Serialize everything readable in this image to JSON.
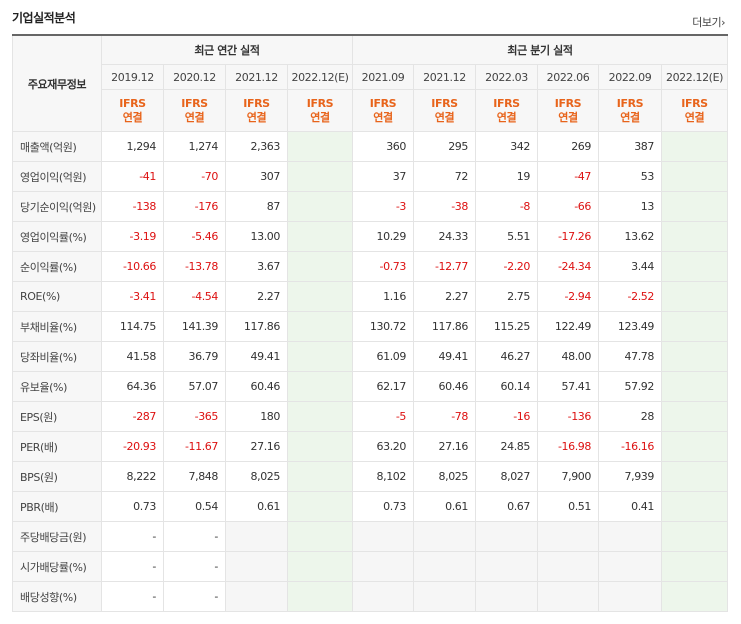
{
  "title": "기업실적분석",
  "more_label": "더보기",
  "more_icon": "chevron-right-icon",
  "header": {
    "side_label": "주요재무정보",
    "annual_label": "최근 연간 실적",
    "quarter_label": "최근 분기 실적",
    "periods": [
      "2019.12",
      "2020.12",
      "2021.12",
      "2022.12(E)",
      "2021.09",
      "2021.12",
      "2022.03",
      "2022.06",
      "2022.09",
      "2022.12(E)"
    ],
    "ifrs_top": "IFRS",
    "ifrs_bottom": "연결"
  },
  "rows": [
    {
      "label": "매출액(억원)",
      "values": [
        "1,294",
        "1,274",
        "2,363",
        "",
        "360",
        "295",
        "342",
        "269",
        "387",
        ""
      ]
    },
    {
      "label": "영업이익(억원)",
      "values": [
        "-41",
        "-70",
        "307",
        "",
        "37",
        "72",
        "19",
        "-47",
        "53",
        ""
      ]
    },
    {
      "label": "당기순이익(억원)",
      "values": [
        "-138",
        "-176",
        "87",
        "",
        "-3",
        "-38",
        "-8",
        "-66",
        "13",
        ""
      ]
    },
    {
      "label": "영업이익률(%)",
      "values": [
        "-3.19",
        "-5.46",
        "13.00",
        "",
        "10.29",
        "24.33",
        "5.51",
        "-17.26",
        "13.62",
        ""
      ]
    },
    {
      "label": "순이익률(%)",
      "values": [
        "-10.66",
        "-13.78",
        "3.67",
        "",
        "-0.73",
        "-12.77",
        "-2.20",
        "-24.34",
        "3.44",
        ""
      ]
    },
    {
      "label": "ROE(%)",
      "values": [
        "-3.41",
        "-4.54",
        "2.27",
        "",
        "1.16",
        "2.27",
        "2.75",
        "-2.94",
        "-2.52",
        ""
      ]
    },
    {
      "label": "부채비율(%)",
      "values": [
        "114.75",
        "141.39",
        "117.86",
        "",
        "130.72",
        "117.86",
        "115.25",
        "122.49",
        "123.49",
        ""
      ]
    },
    {
      "label": "당좌비율(%)",
      "values": [
        "41.58",
        "36.79",
        "49.41",
        "",
        "61.09",
        "49.41",
        "46.27",
        "48.00",
        "47.78",
        ""
      ]
    },
    {
      "label": "유보율(%)",
      "values": [
        "64.36",
        "57.07",
        "60.46",
        "",
        "62.17",
        "60.46",
        "60.14",
        "57.41",
        "57.92",
        ""
      ]
    },
    {
      "label": "EPS(원)",
      "values": [
        "-287",
        "-365",
        "180",
        "",
        "-5",
        "-78",
        "-16",
        "-136",
        "28",
        ""
      ]
    },
    {
      "label": "PER(배)",
      "values": [
        "-20.93",
        "-11.67",
        "27.16",
        "",
        "63.20",
        "27.16",
        "24.85",
        "-16.98",
        "-16.16",
        ""
      ]
    },
    {
      "label": "BPS(원)",
      "values": [
        "8,222",
        "7,848",
        "8,025",
        "",
        "8,102",
        "8,025",
        "8,027",
        "7,900",
        "7,939",
        ""
      ]
    },
    {
      "label": "PBR(배)",
      "values": [
        "0.73",
        "0.54",
        "0.61",
        "",
        "0.73",
        "0.61",
        "0.67",
        "0.51",
        "0.41",
        ""
      ]
    },
    {
      "label": "주당배당금(원)",
      "values": [
        "-",
        "-",
        "",
        "",
        "",
        "",
        "",
        "",
        "",
        ""
      ]
    },
    {
      "label": "시가배당률(%)",
      "values": [
        "-",
        "-",
        "",
        "",
        "",
        "",
        "",
        "",
        "",
        ""
      ]
    },
    {
      "label": "배당성향(%)",
      "values": [
        "-",
        "-",
        "",
        "",
        "",
        "",
        "",
        "",
        "",
        ""
      ]
    }
  ],
  "colors": {
    "negative": "#dd1111",
    "ifrs": "#e8641b",
    "estimate_bg": "#edf6eb",
    "label_bg": "#f7f7f7"
  }
}
